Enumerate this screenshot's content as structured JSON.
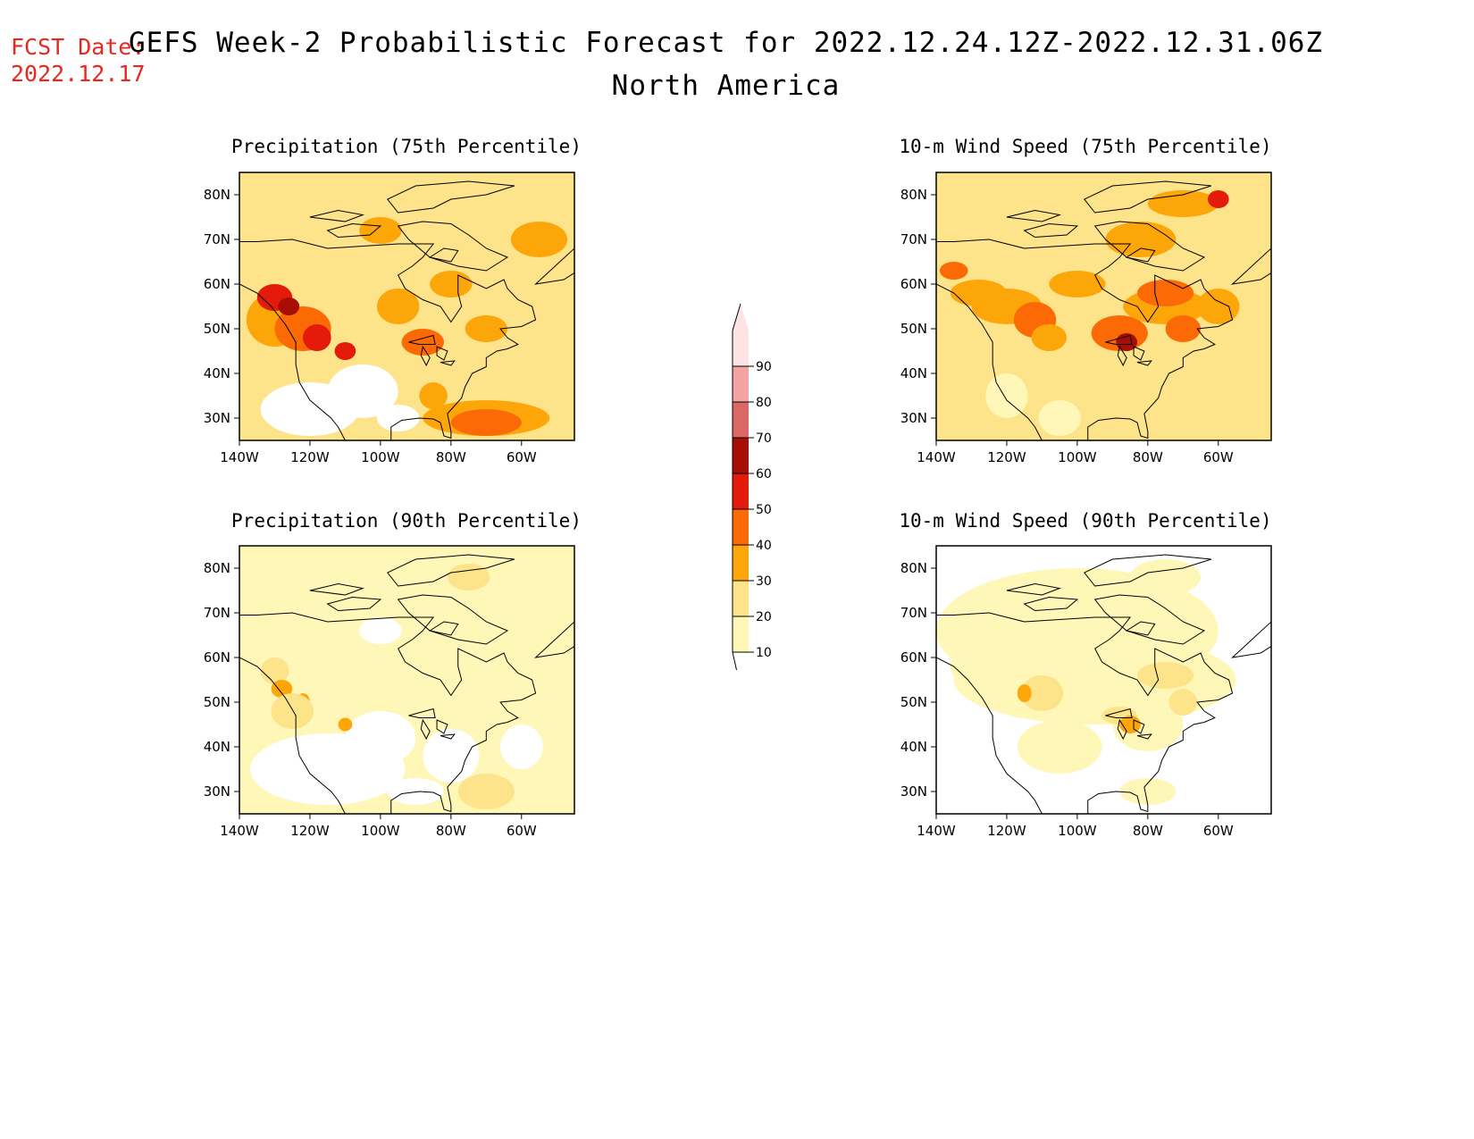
{
  "header": {
    "fcst_label": "FCST Date:",
    "fcst_date": "2022.12.17",
    "title_line1": "GEFS Week-2 Probabilistic Forecast for 2022.12.24.12Z-2022.12.31.06Z",
    "title_line2": "North America"
  },
  "axes": {
    "lat_labels": [
      "80N",
      "70N",
      "60N",
      "50N",
      "40N",
      "30N"
    ],
    "lon_labels": [
      "140W",
      "120W",
      "100W",
      "80W",
      "60W"
    ]
  },
  "panels": [
    {
      "id": "precip75",
      "title": "Precipitation (75th Percentile)"
    },
    {
      "id": "wind75",
      "title": "10-m Wind Speed (75th Percentile)"
    },
    {
      "id": "precip90",
      "title": "Precipitation (90th Percentile)"
    },
    {
      "id": "wind90",
      "title": "10-m Wind Speed (90th Percentile)"
    }
  ],
  "colorbar": {
    "levels": [
      "10",
      "20",
      "30",
      "40",
      "50",
      "60",
      "70",
      "80",
      "90"
    ],
    "colors": [
      "#fff7b8",
      "#fde38a",
      "#fda60a",
      "#fb6a05",
      "#e41a0b",
      "#a60e06",
      "#dc6865",
      "#f4a3a3",
      "#fde3e3"
    ],
    "under_color": "#ffffff"
  }
}
